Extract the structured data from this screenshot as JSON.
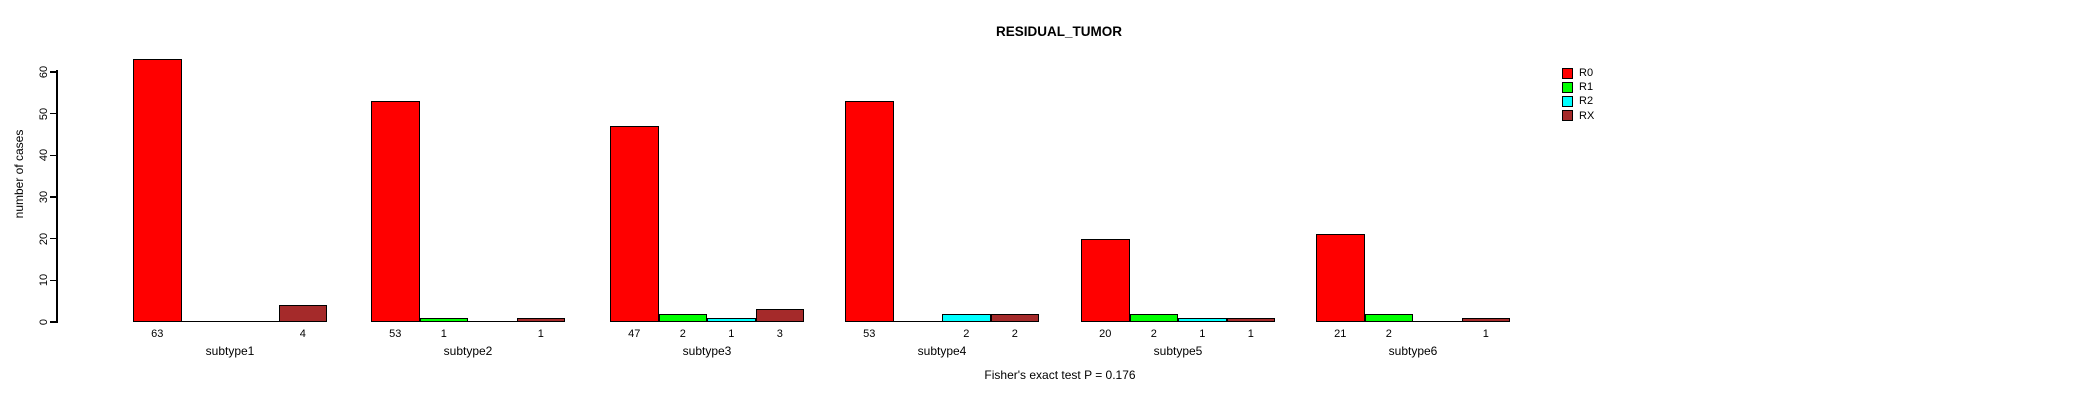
{
  "title": "RESIDUAL_TUMOR",
  "ylabel": "number of cases",
  "footer": "Fisher's exact test P = 0.176",
  "chart_data": {
    "type": "bar",
    "grouped": true,
    "title": "RESIDUAL_TUMOR",
    "xlabel": "",
    "ylabel": "number of cases",
    "categories": [
      "subtype1",
      "subtype2",
      "subtype3",
      "subtype4",
      "subtype5",
      "subtype6"
    ],
    "series": [
      {
        "name": "R0",
        "color": "#FF0000",
        "values": [
          63,
          53,
          47,
          53,
          20,
          21
        ]
      },
      {
        "name": "R1",
        "color": "#00FF00",
        "values": [
          0,
          1,
          2,
          0,
          2,
          2
        ]
      },
      {
        "name": "R2",
        "color": "#00FFFF",
        "values": [
          0,
          0,
          1,
          2,
          1,
          0
        ]
      },
      {
        "name": "RX",
        "color": "#A52A2A",
        "values": [
          4,
          1,
          3,
          2,
          1,
          1
        ]
      }
    ],
    "bar_value_labels": "shown under each nonzero bar",
    "ylim": [
      0,
      60
    ],
    "yticks": [
      0,
      10,
      20,
      30,
      40,
      50,
      60
    ],
    "grid": false,
    "legend_position": "right",
    "annotation": "Fisher's exact test P = 0.176"
  }
}
